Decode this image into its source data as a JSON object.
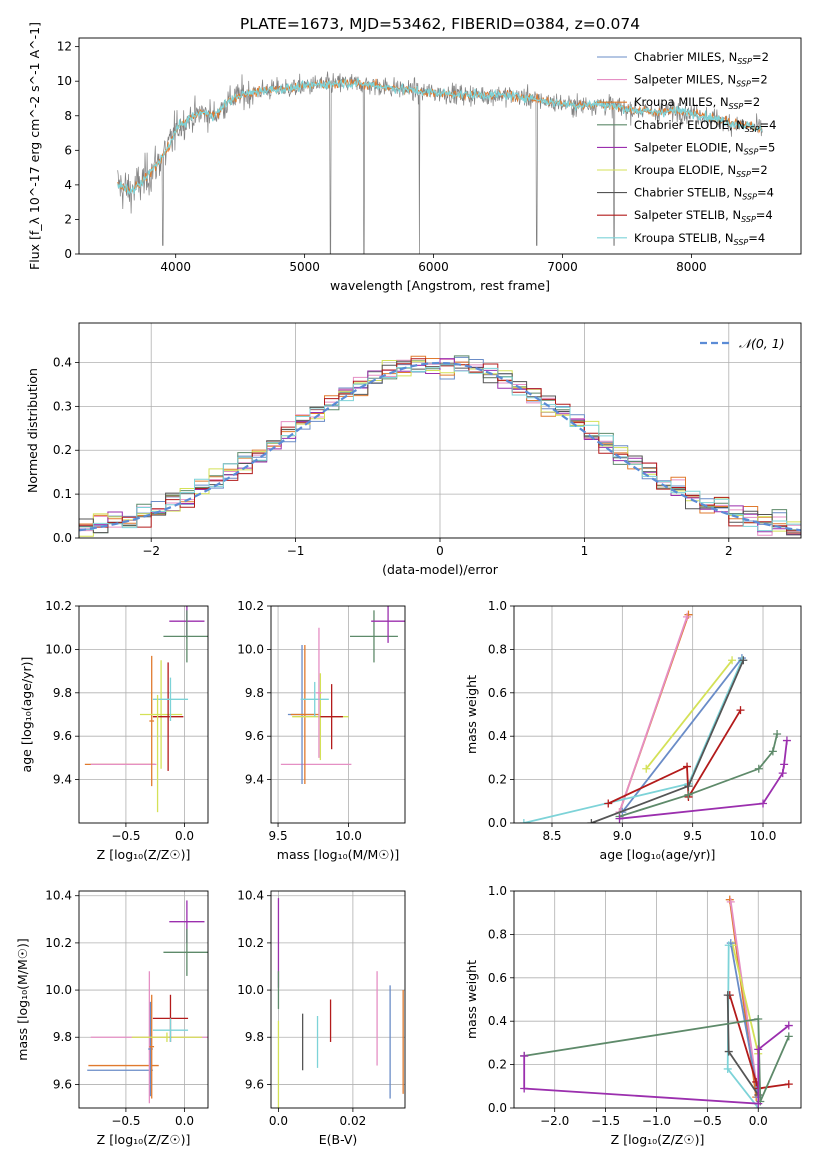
{
  "title": "PLATE=1673, MJD=53462, FIBERID=0384, z=0.074",
  "series": [
    {
      "name": "Chabrier MILES",
      "nssp": "2",
      "color": "#6a8cc7"
    },
    {
      "name": "Salpeter MILES",
      "nssp": "2",
      "color": "#e58fc4"
    },
    {
      "name": "Kroupa MILES",
      "nssp": "2",
      "color": "#e07a2e"
    },
    {
      "name": "Chabrier ELODIE",
      "nssp": "4",
      "color": "#5e8a6a"
    },
    {
      "name": "Salpeter ELODIE",
      "nssp": "5",
      "color": "#9b2fae"
    },
    {
      "name": "Kroupa ELODIE",
      "nssp": "2",
      "color": "#d4e157"
    },
    {
      "name": "Chabrier STELIB",
      "nssp": "4",
      "color": "#555555"
    },
    {
      "name": "Salpeter STELIB",
      "nssp": "4",
      "color": "#b31b1b"
    },
    {
      "name": "Kroupa STELIB",
      "nssp": "4",
      "color": "#7dd3d8"
    }
  ],
  "chart_data": [
    {
      "id": "spectrum",
      "type": "line",
      "xlabel": "wavelength [Angstrom, rest frame]",
      "ylabel": "Flux [f_λ 10^-17 erg cm^-2 s^-1 A^-1]",
      "xlim": [
        3250,
        8850
      ],
      "ylim": [
        0,
        12.5
      ],
      "xticks": [
        4000,
        5000,
        6000,
        7000,
        8000
      ],
      "yticks": [
        0,
        2,
        4,
        6,
        8,
        10,
        12
      ],
      "data_color": "#808080",
      "continuum": [
        [
          3550,
          4.0
        ],
        [
          3650,
          3.6
        ],
        [
          3750,
          4.2
        ],
        [
          3850,
          5.2
        ],
        [
          3950,
          6.2
        ],
        [
          4000,
          7.2
        ],
        [
          4100,
          7.8
        ],
        [
          4200,
          8.2
        ],
        [
          4300,
          8.0
        ],
        [
          4400,
          8.8
        ],
        [
          4500,
          9.2
        ],
        [
          4700,
          9.5
        ],
        [
          4900,
          9.6
        ],
        [
          5100,
          9.8
        ],
        [
          5300,
          9.9
        ],
        [
          5500,
          9.8
        ],
        [
          5700,
          9.6
        ],
        [
          5900,
          9.4
        ],
        [
          6100,
          9.3
        ],
        [
          6300,
          9.2
        ],
        [
          6500,
          9.2
        ],
        [
          6700,
          9.1
        ],
        [
          6900,
          8.8
        ],
        [
          7100,
          8.6
        ],
        [
          7300,
          8.7
        ],
        [
          7500,
          8.4
        ],
        [
          7700,
          8.2
        ],
        [
          7900,
          8.3
        ],
        [
          8100,
          8.0
        ],
        [
          8300,
          7.6
        ],
        [
          8450,
          7.4
        ],
        [
          8550,
          7.2
        ]
      ],
      "grid": false,
      "legend": "upper right"
    },
    {
      "id": "residuals",
      "type": "line",
      "xlabel": "(data-model)/error",
      "ylabel": "Normed distribution",
      "xlim": [
        -2.5,
        2.5
      ],
      "ylim": [
        0,
        0.49
      ],
      "xticks": [
        -2,
        -1,
        0,
        1,
        2
      ],
      "yticks": [
        0.0,
        0.1,
        0.2,
        0.3,
        0.4
      ],
      "normal_label": "𝒩(0, 1)",
      "normal_color": "#5b8cd6",
      "bin_width": 0.1,
      "grid": true,
      "legend": "upper right"
    },
    {
      "id": "age_vs_Z",
      "type": "scatter",
      "xlabel": "Z [log₁₀(Z/Z☉)]",
      "ylabel": "age  [log₁₀(age/yr)]",
      "xlim": [
        -0.9,
        0.2
      ],
      "ylim": [
        9.2,
        10.2
      ],
      "xticks": [
        -0.5,
        0.0
      ],
      "yticks": [
        9.4,
        9.6,
        9.8,
        10.0,
        10.2
      ],
      "points": [
        {
          "x": -0.55,
          "y": 9.47,
          "xerr": 0.3,
          "yerr": 0.0,
          "color": "#e07a2e"
        },
        {
          "x": -0.52,
          "y": 9.47,
          "xerr": 0.28,
          "yerr": 0.0,
          "color": "#e58fc4"
        },
        {
          "x": -0.28,
          "y": 9.67,
          "xerr": 0.02,
          "yerr": 0.3,
          "color": "#e07a2e"
        },
        {
          "x": -0.2,
          "y": 9.7,
          "xerr": 0.18,
          "yerr": 0.25,
          "color": "#d4e157"
        },
        {
          "x": -0.14,
          "y": 9.69,
          "xerr": 0.13,
          "yerr": 0.25,
          "color": "#b31b1b"
        },
        {
          "x": -0.12,
          "y": 9.77,
          "xerr": 0.15,
          "yerr": 0.1,
          "color": "#7dd3d8"
        },
        {
          "x": 0.02,
          "y": 10.13,
          "xerr": 0.15,
          "yerr": 0.08,
          "color": "#9b2fae"
        },
        {
          "x": 0.02,
          "y": 10.06,
          "xerr": 0.2,
          "yerr": 0.12,
          "color": "#5e8a6a"
        },
        {
          "x": -0.23,
          "y": 9.52,
          "xerr": 0.0,
          "yerr": 0.27,
          "color": "#d4e157"
        }
      ]
    },
    {
      "id": "age_vs_mass",
      "type": "scatter",
      "xlabel": "mass [log₁₀(M/M☉)]",
      "ylabel": "",
      "xlim": [
        9.45,
        10.4
      ],
      "ylim": [
        9.2,
        10.2
      ],
      "xticks": [
        9.5,
        10.0
      ],
      "yticks": [
        9.4,
        9.6,
        9.8,
        10.0,
        10.2
      ],
      "points": [
        {
          "x": 9.77,
          "y": 9.47,
          "xerr": 0.25,
          "yerr": 0.0,
          "color": "#e58fc4"
        },
        {
          "x": 9.67,
          "y": 9.7,
          "xerr": 0.1,
          "yerr": 0.32,
          "color": "#6a8cc7"
        },
        {
          "x": 9.69,
          "y": 9.7,
          "xerr": 0.1,
          "yerr": 0.32,
          "color": "#e07a2e"
        },
        {
          "x": 9.8,
          "y": 9.69,
          "xerr": 0.2,
          "yerr": 0.2,
          "color": "#d4e157"
        },
        {
          "x": 9.88,
          "y": 9.69,
          "xerr": 0.08,
          "yerr": 0.15,
          "color": "#b31b1b"
        },
        {
          "x": 9.76,
          "y": 9.77,
          "xerr": 0.1,
          "yerr": 0.08,
          "color": "#7dd3d8"
        },
        {
          "x": 9.79,
          "y": 9.8,
          "xerr": 0.02,
          "yerr": 0.3,
          "color": "#e58fc4"
        },
        {
          "x": 10.18,
          "y": 10.06,
          "xerr": 0.17,
          "yerr": 0.12,
          "color": "#5e8a6a"
        },
        {
          "x": 10.28,
          "y": 10.13,
          "xerr": 0.12,
          "yerr": 0.1,
          "color": "#9b2fae"
        }
      ]
    },
    {
      "id": "weight_vs_age",
      "type": "line",
      "xlabel": "age  [log₁₀(age/yr)]",
      "ylabel": "mass weight",
      "xlim": [
        8.23,
        10.27
      ],
      "ylim": [
        0,
        1.0
      ],
      "xticks": [
        8.5,
        9.0,
        9.5,
        10.0
      ],
      "yticks": [
        0.0,
        0.2,
        0.4,
        0.6,
        0.8,
        1.0
      ],
      "series": [
        {
          "color": "#e07a2e",
          "points": [
            [
              8.98,
              0.05
            ],
            [
              9.47,
              0.96
            ]
          ]
        },
        {
          "color": "#e58fc4",
          "points": [
            [
              8.98,
              0.05
            ],
            [
              9.46,
              0.95
            ]
          ]
        },
        {
          "color": "#d4e157",
          "points": [
            [
              9.17,
              0.25
            ],
            [
              9.78,
              0.75
            ]
          ]
        },
        {
          "color": "#6a8cc7",
          "points": [
            [
              9.0,
              0.05
            ],
            [
              9.85,
              0.76
            ]
          ]
        },
        {
          "color": "#7dd3d8",
          "points": [
            [
              8.3,
              0.0
            ],
            [
              9.47,
              0.18
            ],
            [
              9.85,
              0.75
            ]
          ]
        },
        {
          "color": "#b31b1b",
          "points": [
            [
              8.9,
              0.09
            ],
            [
              9.46,
              0.26
            ],
            [
              9.47,
              0.12
            ],
            [
              9.84,
              0.52
            ]
          ]
        },
        {
          "color": "#555555",
          "points": [
            [
              8.78,
              0.0
            ],
            [
              9.47,
              0.17
            ],
            [
              9.86,
              0.75
            ]
          ]
        },
        {
          "color": "#5e8a6a",
          "points": [
            [
              8.98,
              0.03
            ],
            [
              9.47,
              0.13
            ],
            [
              9.97,
              0.25
            ],
            [
              10.07,
              0.33
            ],
            [
              10.1,
              0.41
            ]
          ]
        },
        {
          "color": "#9b2fae",
          "points": [
            [
              8.98,
              0.02
            ],
            [
              10.0,
              0.09
            ],
            [
              10.14,
              0.23
            ],
            [
              10.15,
              0.27
            ],
            [
              10.17,
              0.38
            ]
          ]
        }
      ]
    },
    {
      "id": "mass_vs_Z",
      "type": "scatter",
      "xlabel": "Z [log₁₀(Z/Z☉)]",
      "ylabel": "mass [log₁₀(M/M☉)]",
      "xlim": [
        -0.9,
        0.2
      ],
      "ylim": [
        9.5,
        10.42
      ],
      "xticks": [
        -0.5,
        0.0
      ],
      "yticks": [
        9.6,
        9.8,
        10.0,
        10.2,
        10.4
      ],
      "points": [
        {
          "x": -0.52,
          "y": 9.68,
          "xerr": 0.3,
          "yerr": 0.0,
          "color": "#e07a2e"
        },
        {
          "x": -0.55,
          "y": 9.66,
          "xerr": 0.28,
          "yerr": 0.0,
          "color": "#6a8cc7"
        },
        {
          "x": -0.3,
          "y": 9.8,
          "xerr": 0.5,
          "yerr": 0.28,
          "color": "#e58fc4"
        },
        {
          "x": -0.29,
          "y": 9.75,
          "xerr": 0.02,
          "yerr": 0.2,
          "color": "#6a8cc7"
        },
        {
          "x": -0.28,
          "y": 9.76,
          "xerr": 0.02,
          "yerr": 0.22,
          "color": "#e07a2e"
        },
        {
          "x": -0.15,
          "y": 9.8,
          "xerr": 0.3,
          "yerr": 0.02,
          "color": "#d4e157"
        },
        {
          "x": -0.12,
          "y": 9.88,
          "xerr": 0.15,
          "yerr": 0.1,
          "color": "#b31b1b"
        },
        {
          "x": -0.12,
          "y": 9.83,
          "xerr": 0.15,
          "yerr": 0.05,
          "color": "#7dd3d8"
        },
        {
          "x": 0.02,
          "y": 10.29,
          "xerr": 0.15,
          "yerr": 0.09,
          "color": "#9b2fae"
        },
        {
          "x": 0.02,
          "y": 10.16,
          "xerr": 0.2,
          "yerr": 0.1,
          "color": "#5e8a6a"
        }
      ]
    },
    {
      "id": "mass_vs_ebv",
      "type": "scatter",
      "xlabel": "E(B-V)",
      "ylabel": "",
      "xlim": [
        -0.002,
        0.034
      ],
      "ylim": [
        9.5,
        10.42
      ],
      "xticks": [
        0.0,
        0.02
      ],
      "yticks": [
        9.6,
        9.8,
        10.0,
        10.2,
        10.4
      ],
      "points": [
        {
          "x": 0.0,
          "y": 10.2,
          "xerr": 0,
          "yerr": 0.19,
          "color": "#9b2fae"
        },
        {
          "x": 0.0,
          "y": 10.0,
          "xerr": 0,
          "yerr": 0.08,
          "color": "#5e8a6a"
        },
        {
          "x": 0.0,
          "y": 9.68,
          "xerr": 0,
          "yerr": 0.19,
          "color": "#d4e157"
        },
        {
          "x": 0.0065,
          "y": 9.78,
          "xerr": 0,
          "yerr": 0.12,
          "color": "#555555"
        },
        {
          "x": 0.0105,
          "y": 9.78,
          "xerr": 0,
          "yerr": 0.11,
          "color": "#7dd3d8"
        },
        {
          "x": 0.014,
          "y": 9.87,
          "xerr": 0,
          "yerr": 0.09,
          "color": "#b31b1b"
        },
        {
          "x": 0.0265,
          "y": 9.88,
          "xerr": 0,
          "yerr": 0.2,
          "color": "#e58fc4"
        },
        {
          "x": 0.03,
          "y": 9.78,
          "xerr": 0,
          "yerr": 0.24,
          "color": "#6a8cc7"
        },
        {
          "x": 0.0335,
          "y": 9.78,
          "xerr": 0,
          "yerr": 0.22,
          "color": "#e07a2e"
        }
      ]
    },
    {
      "id": "weight_vs_Z",
      "type": "line",
      "xlabel": "Z [log₁₀(Z/Z☉)]",
      "ylabel": "mass weight",
      "xlim": [
        -2.4,
        0.42
      ],
      "ylim": [
        0,
        1.0
      ],
      "xticks": [
        -2.0,
        -1.5,
        -1.0,
        -0.5,
        0.0
      ],
      "yticks": [
        0.0,
        0.2,
        0.4,
        0.6,
        0.8,
        1.0
      ],
      "series": [
        {
          "color": "#e07a2e",
          "points": [
            [
              -0.28,
              0.96
            ],
            [
              -0.02,
              0.05
            ]
          ]
        },
        {
          "color": "#e58fc4",
          "points": [
            [
              -0.27,
              0.95
            ],
            [
              0.0,
              0.05
            ]
          ]
        },
        {
          "color": "#d4e157",
          "points": [
            [
              -0.25,
              0.75
            ],
            [
              0.0,
              0.25
            ]
          ]
        },
        {
          "color": "#6a8cc7",
          "points": [
            [
              -0.27,
              0.76
            ],
            [
              0.0,
              0.05
            ]
          ]
        },
        {
          "color": "#7dd3d8",
          "points": [
            [
              -0.29,
              0.75
            ],
            [
              -0.3,
              0.18
            ],
            [
              0.0,
              0.0
            ]
          ]
        },
        {
          "color": "#b31b1b",
          "points": [
            [
              -0.28,
              0.52
            ],
            [
              -0.02,
              0.12
            ],
            [
              0.0,
              0.09
            ],
            [
              0.3,
              0.11
            ]
          ]
        },
        {
          "color": "#555555",
          "points": [
            [
              -0.3,
              0.52
            ],
            [
              -0.29,
              0.26
            ],
            [
              0.0,
              0.06
            ]
          ]
        },
        {
          "color": "#5e8a6a",
          "points": [
            [
              -2.3,
              0.24
            ],
            [
              0.0,
              0.41
            ],
            [
              0.02,
              0.03
            ],
            [
              0.3,
              0.33
            ]
          ]
        },
        {
          "color": "#9b2fae",
          "points": [
            [
              -2.3,
              0.24
            ],
            [
              -2.3,
              0.09
            ],
            [
              0.0,
              0.02
            ],
            [
              0.0,
              0.27
            ],
            [
              0.3,
              0.38
            ]
          ]
        }
      ]
    }
  ]
}
